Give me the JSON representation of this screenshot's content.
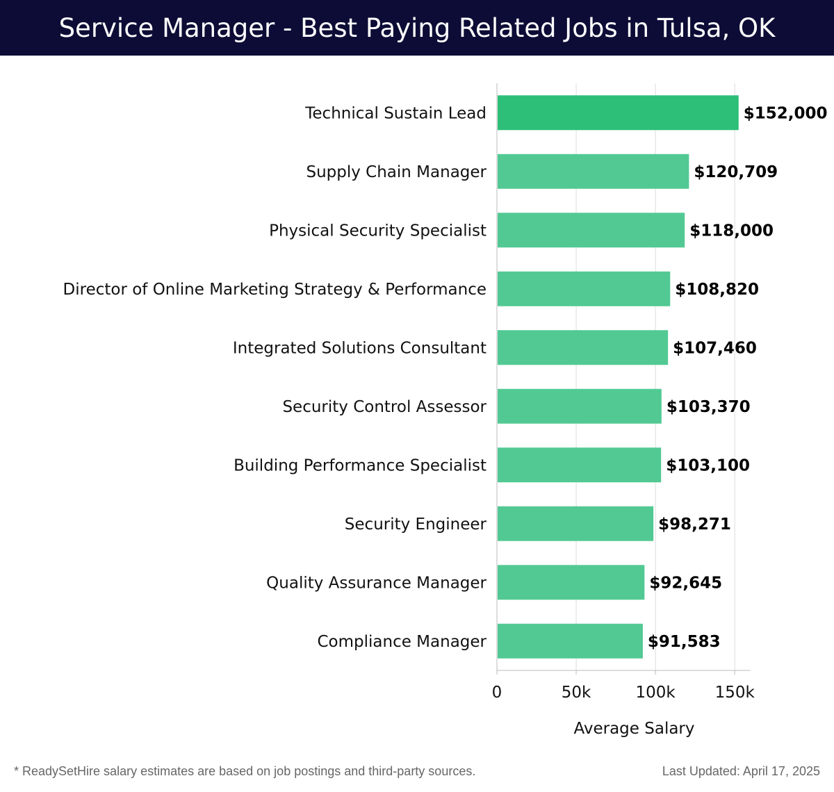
{
  "header": {
    "title": "Service Manager - Best Paying Related Jobs in Tulsa, OK",
    "background_color": "#0c0c36"
  },
  "chart_data": {
    "type": "bar",
    "orientation": "horizontal",
    "categories": [
      "Technical Sustain Lead",
      "Supply Chain Manager",
      "Physical Security Specialist",
      "Director of Online Marketing Strategy & Performance",
      "Integrated Solutions Consultant",
      "Security Control Assessor",
      "Building Performance Specialist",
      "Security Engineer",
      "Quality Assurance Manager",
      "Compliance Manager"
    ],
    "values": [
      152000,
      120709,
      118000,
      108820,
      107460,
      103370,
      103100,
      98271,
      92645,
      91583
    ],
    "value_labels": [
      "$152,000",
      "$120,709",
      "$118,000",
      "$108,820",
      "$107,460",
      "$103,370",
      "$103,100",
      "$98,271",
      "$92,645",
      "$91,583"
    ],
    "xlabel": "Average Salary",
    "ylabel": "",
    "xlim": [
      0,
      160000
    ],
    "xticks": [
      0,
      50000,
      100000,
      150000
    ],
    "xtick_labels": [
      "0",
      "50k",
      "100k",
      "150k"
    ],
    "grid": "vertical",
    "colors": {
      "top_bar": "#2dbf78",
      "bars": "#52c993",
      "grid": "#dddddd",
      "axis": "#bbbbbb"
    }
  },
  "footer": {
    "note": "* ReadySetHire salary estimates are based on job postings and third-party sources.",
    "updated": "Last Updated: April 17, 2025"
  }
}
